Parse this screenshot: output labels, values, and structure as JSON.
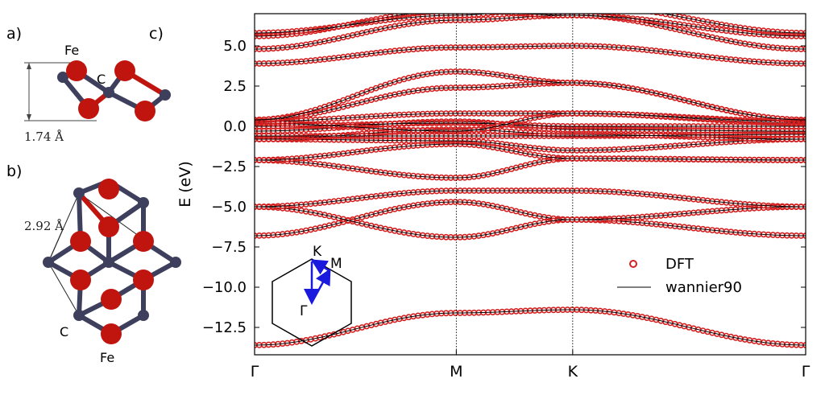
{
  "panels": {
    "a": {
      "label": "a)",
      "atom_fe": "Fe",
      "atom_c": "C",
      "height_label": "1.74 Å"
    },
    "b": {
      "label": "b)",
      "distance_label": "2.92 Å",
      "atom_c": "C",
      "atom_fe": "Fe"
    },
    "c": {
      "label": "c)"
    }
  },
  "colors": {
    "fe_atom": "#c0140e",
    "c_atom": "#3d3f5c",
    "dft_marker": "#d42020",
    "wannier_line": "#000000",
    "bz_path": "#1a1adf"
  },
  "brillouin_zone": {
    "points": [
      "K",
      "M",
      "Γ"
    ]
  },
  "chart_data": {
    "type": "line",
    "title": "",
    "xlabel": "",
    "ylabel": "E (eV)",
    "ylim": [
      -14.2,
      7.0
    ],
    "yticks": [
      5.0,
      2.5,
      0.0,
      -2.5,
      -5.0,
      -7.5,
      -10.0,
      -12.5
    ],
    "ytick_labels": [
      "5.0",
      "2.5",
      "0.0",
      "−2.5",
      "−5.0",
      "−7.5",
      "−10.0",
      "−12.5"
    ],
    "high_symmetry_points": [
      {
        "label": "Γ",
        "k": 0.0
      },
      {
        "label": "M",
        "k": 1.0
      },
      {
        "label": "K",
        "k": 1.577
      },
      {
        "label": "Γ",
        "k": 2.732
      }
    ],
    "legend": {
      "placement": "bottom-right",
      "entries": [
        "DFT",
        "wannier90"
      ]
    },
    "series": [
      {
        "name": "DFT",
        "style": "markers"
      },
      {
        "name": "wannier90",
        "style": "line"
      }
    ],
    "bands": [
      [
        -13.6,
        -11.6,
        -11.4,
        -13.6
      ],
      [
        -6.8,
        -4.7,
        -5.8,
        -6.8
      ],
      [
        -5.0,
        -6.9,
        -5.8,
        -5.0
      ],
      [
        -5.0,
        -4.0,
        -4.0,
        -5.0
      ],
      [
        -2.1,
        -3.2,
        -2.0,
        -2.1
      ],
      [
        -2.1,
        -1.1,
        -2.0,
        -2.1
      ],
      [
        -0.8,
        -0.9,
        -1.5,
        -0.8
      ],
      [
        -0.8,
        -0.2,
        -0.5,
        -0.8
      ],
      [
        -0.6,
        -0.6,
        -0.6,
        -0.5
      ],
      [
        -0.3,
        0.3,
        -0.2,
        -0.3
      ],
      [
        0.0,
        0.2,
        0.0,
        0.0
      ],
      [
        0.2,
        -0.3,
        0.8,
        0.2
      ],
      [
        0.3,
        0.8,
        0.8,
        0.3
      ],
      [
        0.4,
        2.4,
        2.7,
        0.4
      ],
      [
        0.4,
        3.4,
        2.7,
        0.4
      ],
      [
        3.9,
        4.9,
        5.0,
        3.9
      ],
      [
        4.8,
        6.6,
        6.9,
        4.8
      ],
      [
        5.6,
        7.2,
        6.9,
        5.6
      ],
      [
        5.8,
        6.9,
        7.6,
        5.8
      ]
    ]
  }
}
